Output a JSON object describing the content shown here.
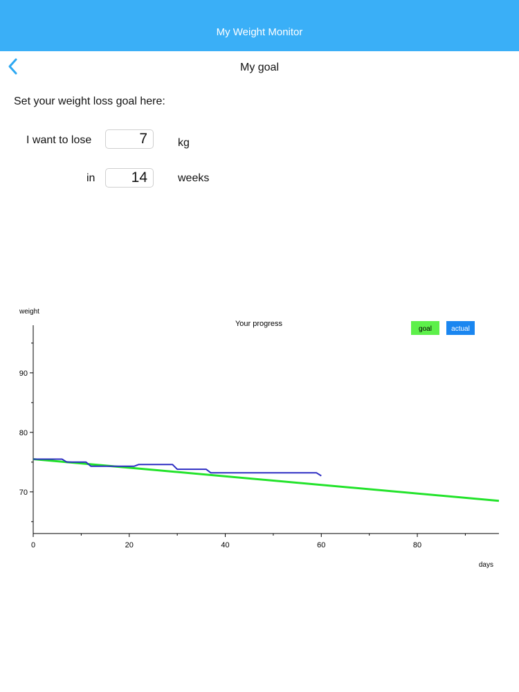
{
  "app": {
    "title": "My Weight Monitor"
  },
  "nav": {
    "title": "My goal",
    "back_icon": "chevron-left-icon"
  },
  "form": {
    "prompt": "Set your weight loss goal here:",
    "lose_label": "I want to lose",
    "lose_value": "7",
    "lose_unit": "kg",
    "in_label": "in",
    "weeks_value": "14",
    "weeks_unit": "weeks"
  },
  "colors": {
    "header": "#3aaff7",
    "goal": "#22e32a",
    "actual": "#2b2bc2",
    "actual_legend": "#1a86f0",
    "goal_legend": "#5df04a"
  },
  "chart_data": {
    "type": "line",
    "title": "Your progress",
    "xlabel": "days",
    "ylabel": "weight",
    "xlim": [
      0,
      97
    ],
    "ylim": [
      63,
      98
    ],
    "x_ticks": [
      0,
      20,
      40,
      60,
      80
    ],
    "y_ticks": [
      70,
      80,
      90
    ],
    "legend": [
      "goal",
      "actual"
    ],
    "legend_position": "top-right",
    "grid": false,
    "series": [
      {
        "name": "goal",
        "x": [
          0,
          97
        ],
        "y": [
          75.5,
          68.5
        ]
      },
      {
        "name": "actual",
        "x": [
          0,
          6,
          7,
          11,
          12,
          21,
          22,
          29,
          30,
          36,
          37,
          59,
          60
        ],
        "y": [
          75.5,
          75.5,
          75.0,
          75.0,
          74.3,
          74.3,
          74.6,
          74.6,
          73.8,
          73.8,
          73.2,
          73.2,
          72.7
        ]
      }
    ]
  }
}
